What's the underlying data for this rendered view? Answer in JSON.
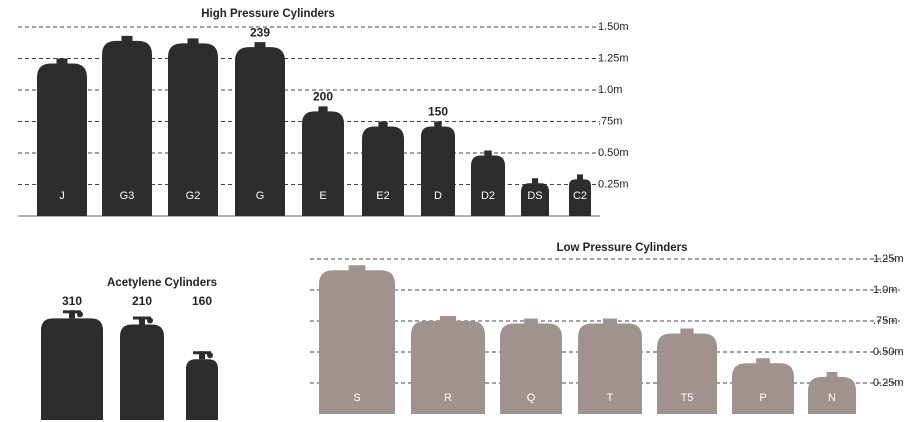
{
  "chart_data": [
    {
      "type": "cylinder",
      "title": "High Pressure Cylinders",
      "color": "#2d2d2d",
      "categories": [
        "J",
        "G3",
        "G2",
        "G",
        "E",
        "E2",
        "D",
        "D2",
        "DS",
        "C2"
      ],
      "values": [
        1.25,
        1.43,
        1.41,
        1.38,
        0.87,
        0.75,
        0.75,
        0.52,
        0.3,
        0.33
      ],
      "capacity_labels": [
        null,
        null,
        null,
        239,
        200,
        null,
        150,
        null,
        null,
        null
      ],
      "ylim": [
        0,
        1.6
      ],
      "yticks": [
        {
          "value": 1.5,
          "label": "1.50m"
        },
        {
          "value": 1.25,
          "label": "1.25m"
        },
        {
          "value": 1.0,
          "label": "1.0m"
        },
        {
          "value": 0.75,
          "label": ".75m"
        },
        {
          "value": 0.5,
          "label": "0.50m"
        },
        {
          "value": 0.25,
          "label": "0.25m"
        }
      ],
      "grid": true
    },
    {
      "type": "acetylene",
      "title": "Acetylene Cylinders",
      "color": "#2d2d2d",
      "categories": [
        "310",
        "210",
        "160"
      ],
      "values": [
        0.82,
        0.77,
        0.49
      ]
    },
    {
      "type": "cylinder",
      "title": "Low Pressure Cylinders",
      "color": "#a0938f",
      "categories": [
        "S",
        "R",
        "Q",
        "T",
        "T5",
        "P",
        "N"
      ],
      "values": [
        1.2,
        0.79,
        0.77,
        0.77,
        0.69,
        0.45,
        0.34
      ],
      "ylim": [
        0,
        1.3
      ],
      "yticks": [
        {
          "value": 1.25,
          "label": "1.25m"
        },
        {
          "value": 1.0,
          "label": "1.0m"
        },
        {
          "value": 0.75,
          "label": ".75m"
        },
        {
          "value": 0.5,
          "label": "0.50m"
        },
        {
          "value": 0.25,
          "label": "0.25m"
        }
      ],
      "grid": true
    }
  ]
}
